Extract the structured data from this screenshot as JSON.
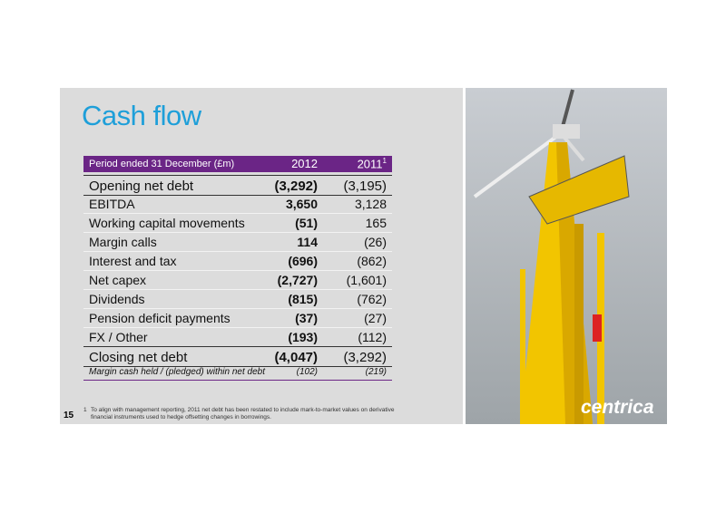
{
  "slide": {
    "title": "Cash flow",
    "page_number": "15",
    "table": {
      "header": [
        "Period ended 31 December (£m)",
        "2012",
        "2011"
      ],
      "header_note": "1",
      "rows": [
        [
          "Opening net debt",
          "(3,292)",
          "(3,195)"
        ],
        [
          "EBITDA",
          "3,650",
          "3,128"
        ],
        [
          "Working capital movements",
          "(51)",
          "165"
        ],
        [
          "Margin calls",
          "114",
          "(26)"
        ],
        [
          "Interest and tax",
          "(696)",
          "(862)"
        ],
        [
          "Net capex",
          "(2,727)",
          "(1,601)"
        ],
        [
          "Dividends",
          "(815)",
          "(762)"
        ],
        [
          "Pension deficit payments",
          "(37)",
          "(27)"
        ],
        [
          "FX / Other",
          "(193)",
          "(112)"
        ],
        [
          "Closing net debt",
          "(4,047)",
          "(3,292)"
        ],
        [
          "Margin cash held / (pledged) within net debt",
          "(102)",
          "(219)"
        ]
      ]
    },
    "footnote_marker": "1",
    "footnote": "To align with management reporting, 2011 net debt has been restated to include mark-to-market values on derivative financial instruments used to hedge offsetting changes in borrowings.",
    "brand": "centrica"
  }
}
